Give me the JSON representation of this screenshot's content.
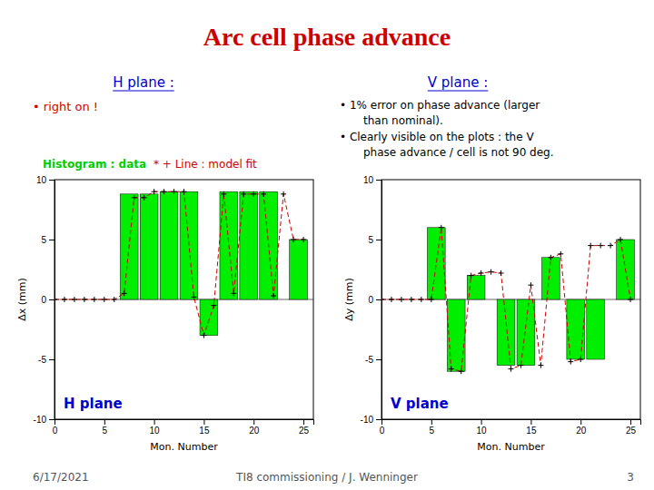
{
  "title": "Arc cell phase advance",
  "annotations": [
    "H plane :",
    "• right on !",
    "V plane :",
    "• 1% error on phase advance (larger",
    "than nominal).",
    "• Clearly visible on the plots : the V",
    "phase advance / cell is not 90 deg.",
    "6/17/2021",
    "TI8 commissioning / J. Wenninger",
    "3"
  ],
  "chart_data": [
    {
      "type": "bar",
      "title": "H plane",
      "xlabel": "Mon. Number",
      "ylabel": "Δx (mm)",
      "xlim": [
        0,
        26
      ],
      "ylim": [
        -10,
        10
      ],
      "xticks": [
        0,
        5,
        10,
        15,
        20,
        25
      ],
      "yticks": [
        -10,
        -5,
        0,
        5,
        10
      ],
      "series": [
        {
          "name": "Histogram : data",
          "type": "bar",
          "color": "#00ee00",
          "x": [
            7.5,
            9.5,
            11.5,
            13.5,
            15.5,
            17.5,
            19.5,
            21.5,
            24.5
          ],
          "values": [
            8.8,
            8.8,
            9.0,
            9.0,
            -3.0,
            9.0,
            9.0,
            9.0,
            5.0
          ]
        },
        {
          "name": "* + Line : model fit",
          "type": "line",
          "color": "#cc0000",
          "marker": "plus",
          "line_style": "dashed",
          "x": [
            0,
            1,
            2,
            3,
            4,
            5,
            6,
            7,
            8,
            9,
            10,
            11,
            12,
            13,
            14,
            15,
            16,
            17,
            18,
            19,
            20,
            21,
            22,
            23,
            24,
            25
          ],
          "values": [
            0,
            0,
            0,
            0,
            0,
            0,
            0,
            0.5,
            8.5,
            8.5,
            9.0,
            9.0,
            9.0,
            9.0,
            0.2,
            -3.0,
            -0.5,
            8.8,
            0.5,
            8.8,
            8.8,
            8.8,
            0.3,
            8.8,
            5.0,
            5.0
          ]
        }
      ]
    },
    {
      "type": "bar",
      "title": "V plane",
      "xlabel": "Mon. Number",
      "ylabel": "Δy (mm)",
      "xlim": [
        0,
        26
      ],
      "ylim": [
        -10,
        10
      ],
      "xticks": [
        0,
        5,
        10,
        15,
        20,
        25
      ],
      "yticks": [
        -10,
        -5,
        0,
        5,
        10
      ],
      "series": [
        {
          "type": "bar",
          "color": "#00ee00",
          "x": [
            5.5,
            7.5,
            9.5,
            12.5,
            14.5,
            17.0,
            19.5,
            21.5,
            24.5
          ],
          "values": [
            6.0,
            -6.0,
            2.0,
            -5.5,
            -5.5,
            3.5,
            -5.0,
            -5.0,
            5.0
          ]
        },
        {
          "type": "line",
          "color": "#cc0000",
          "marker": "plus",
          "line_style": "dashed",
          "x": [
            0,
            1,
            2,
            3,
            4,
            5,
            6,
            7,
            8,
            9,
            10,
            11,
            12,
            13,
            14,
            15,
            16,
            17,
            18,
            19,
            20,
            21,
            22,
            23,
            24,
            25
          ],
          "values": [
            0,
            0,
            0,
            0,
            0,
            0,
            6.0,
            -5.8,
            -6.0,
            2.0,
            2.2,
            2.3,
            2.2,
            -5.8,
            -5.5,
            1.2,
            -5.5,
            3.5,
            3.8,
            -5.2,
            -5.0,
            4.5,
            4.5,
            4.5,
            5.0,
            0.0
          ]
        }
      ]
    }
  ]
}
